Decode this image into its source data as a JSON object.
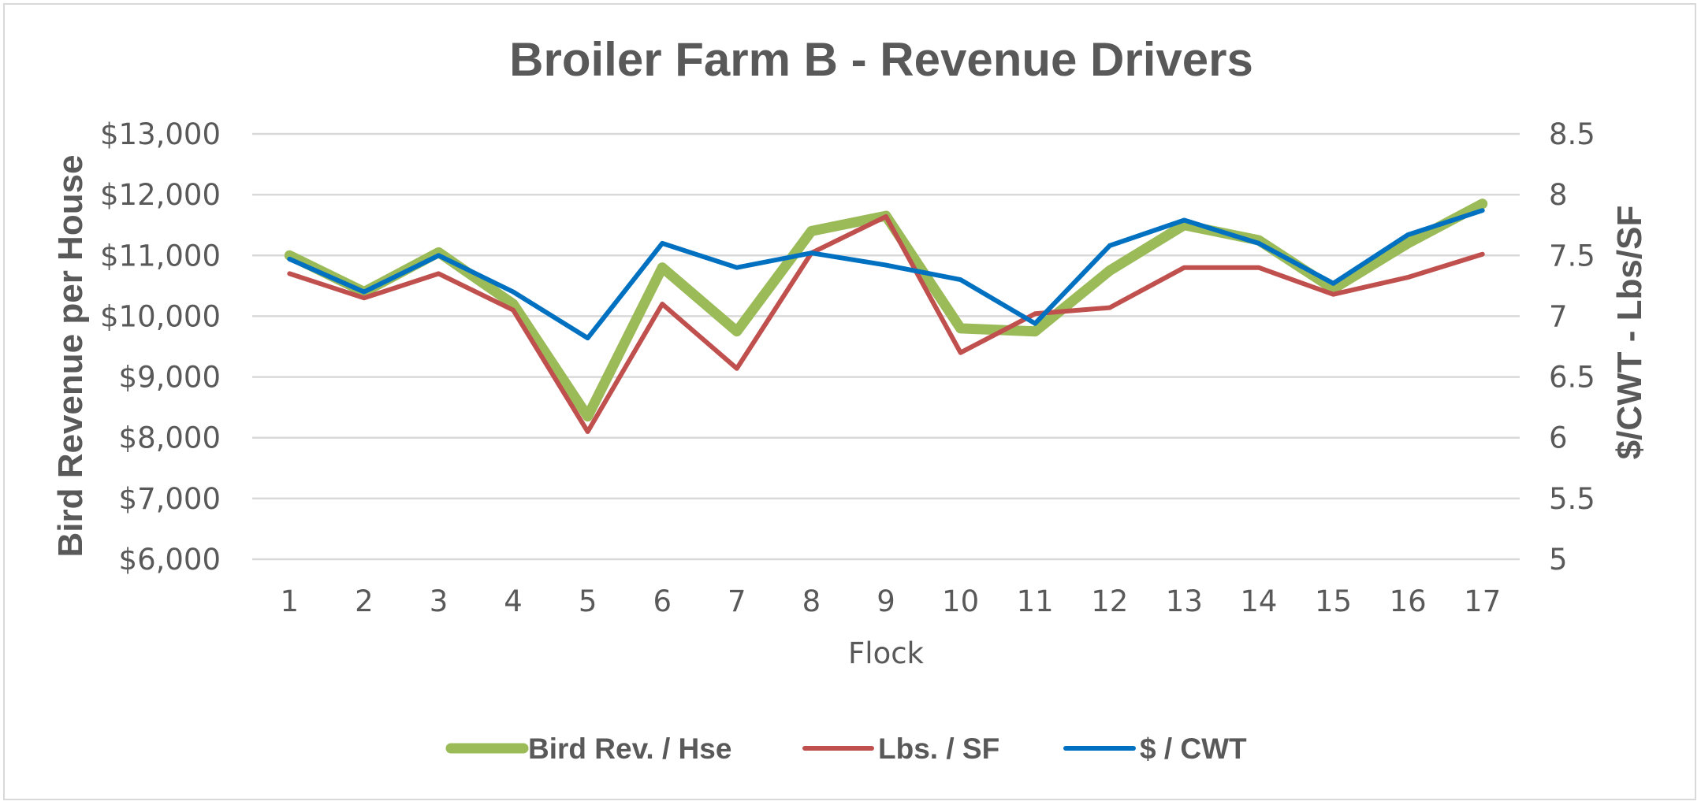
{
  "chart_data": {
    "type": "line",
    "title": "Broiler Farm B - Revenue Drivers",
    "xlabel": "Flock",
    "ylabel_left": "Bird Revenue per House",
    "ylabel_right": "$/CWT - Lbs/SF",
    "categories": [
      "1",
      "2",
      "3",
      "4",
      "5",
      "6",
      "7",
      "8",
      "9",
      "10",
      "11",
      "12",
      "13",
      "14",
      "15",
      "16",
      "17"
    ],
    "y_left": {
      "ylim": [
        6000,
        13000
      ],
      "ticks": [
        6000,
        7000,
        8000,
        9000,
        10000,
        11000,
        12000,
        13000
      ],
      "tick_labels": [
        "$6,000",
        "$7,000",
        "$8,000",
        "$9,000",
        "$10,000",
        "$11,000",
        "$12,000",
        "$13,000"
      ]
    },
    "y_right": {
      "ylim": [
        5,
        8.5
      ],
      "ticks": [
        5,
        5.5,
        6,
        6.5,
        7,
        7.5,
        8,
        8.5
      ],
      "tick_labels": [
        "5",
        "5.5",
        "6",
        "6.5",
        "7",
        "7.5",
        "8",
        "8.5"
      ]
    },
    "grid": true,
    "legend_position": "bottom",
    "series": [
      {
        "name": "Bird Rev. / Hse",
        "axis": "left",
        "color": "#9bbb59",
        "values": [
          11000,
          10400,
          11050,
          10200,
          8350,
          10800,
          9750,
          11400,
          11650,
          9800,
          9750,
          10750,
          11500,
          11250,
          10450,
          11200,
          11850
        ]
      },
      {
        "name": "Lbs. / SF",
        "axis": "right",
        "color": "#c0504d",
        "values": [
          7.35,
          7.15,
          7.35,
          7.05,
          6.05,
          7.1,
          6.57,
          7.52,
          7.82,
          6.7,
          7.02,
          7.07,
          7.4,
          7.4,
          7.18,
          7.32,
          7.51
        ]
      },
      {
        "name": "$ / CWT",
        "axis": "right",
        "color": "#0070c0",
        "values": [
          7.47,
          7.2,
          7.5,
          7.2,
          6.82,
          7.6,
          7.4,
          7.52,
          7.42,
          7.3,
          6.94,
          7.58,
          7.79,
          7.6,
          7.27,
          7.67,
          7.87
        ]
      }
    ]
  }
}
